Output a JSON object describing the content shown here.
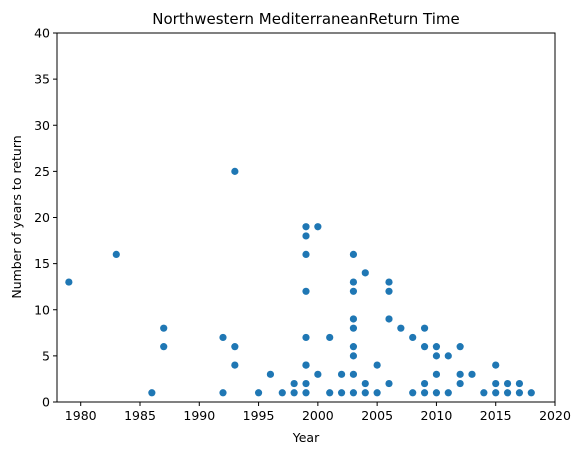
{
  "chart_data": {
    "type": "scatter",
    "title": "Northwestern MediterraneanReturn Time",
    "xlabel": "Year",
    "ylabel": "Number of years to return",
    "xlim": [
      1978,
      2020
    ],
    "ylim": [
      0,
      40
    ],
    "xticks": [
      1980,
      1985,
      1990,
      1995,
      2000,
      2005,
      2010,
      2015,
      2020
    ],
    "yticks": [
      0,
      5,
      10,
      15,
      20,
      25,
      30,
      35,
      40
    ],
    "grid": false,
    "marker_color": "#1f77b4",
    "points": [
      [
        1979,
        13
      ],
      [
        1983,
        16
      ],
      [
        1986,
        1
      ],
      [
        1987,
        8
      ],
      [
        1987,
        6
      ],
      [
        1992,
        7
      ],
      [
        1992,
        1
      ],
      [
        1993,
        25
      ],
      [
        1993,
        6
      ],
      [
        1993,
        4
      ],
      [
        1995,
        1
      ],
      [
        1996,
        3
      ],
      [
        1997,
        1
      ],
      [
        1998,
        1
      ],
      [
        1998,
        2
      ],
      [
        1999,
        19
      ],
      [
        1999,
        18
      ],
      [
        1999,
        16
      ],
      [
        1999,
        12
      ],
      [
        1999,
        7
      ],
      [
        1999,
        4
      ],
      [
        1999,
        4
      ],
      [
        1999,
        2
      ],
      [
        1999,
        1
      ],
      [
        2000,
        19
      ],
      [
        2000,
        3
      ],
      [
        2001,
        7
      ],
      [
        2001,
        1
      ],
      [
        2002,
        3
      ],
      [
        2002,
        1
      ],
      [
        2003,
        16
      ],
      [
        2003,
        13
      ],
      [
        2003,
        12
      ],
      [
        2003,
        9
      ],
      [
        2003,
        8
      ],
      [
        2003,
        6
      ],
      [
        2003,
        5
      ],
      [
        2003,
        3
      ],
      [
        2003,
        1
      ],
      [
        2004,
        14
      ],
      [
        2004,
        2
      ],
      [
        2004,
        1
      ],
      [
        2005,
        4
      ],
      [
        2005,
        1
      ],
      [
        2006,
        13
      ],
      [
        2006,
        12
      ],
      [
        2006,
        9
      ],
      [
        2006,
        2
      ],
      [
        2007,
        8
      ],
      [
        2008,
        7
      ],
      [
        2008,
        1
      ],
      [
        2009,
        8
      ],
      [
        2009,
        6
      ],
      [
        2009,
        2
      ],
      [
        2009,
        1
      ],
      [
        2010,
        6
      ],
      [
        2010,
        5
      ],
      [
        2010,
        3
      ],
      [
        2010,
        1
      ],
      [
        2011,
        5
      ],
      [
        2011,
        1
      ],
      [
        2012,
        6
      ],
      [
        2012,
        3
      ],
      [
        2012,
        2
      ],
      [
        2013,
        3
      ],
      [
        2014,
        1
      ],
      [
        2015,
        4
      ],
      [
        2015,
        2
      ],
      [
        2015,
        1
      ],
      [
        2016,
        2
      ],
      [
        2016,
        1
      ],
      [
        2017,
        2
      ],
      [
        2017,
        1
      ],
      [
        2018,
        1
      ]
    ]
  }
}
